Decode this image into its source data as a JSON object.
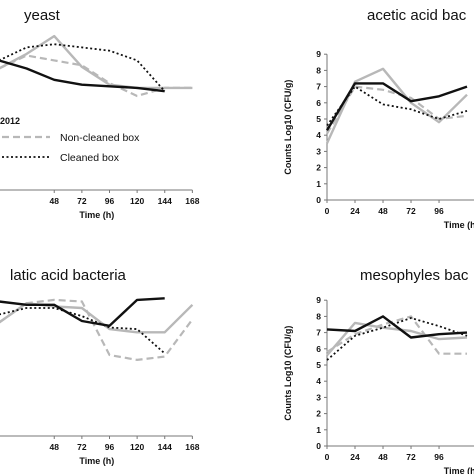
{
  "chart_data": [
    {
      "type": "line",
      "title": "yeast",
      "xlabel": "Time (h)",
      "ylabel": "",
      "xlim": [
        0,
        168
      ],
      "ylim": [
        0,
        9
      ],
      "xticks": [
        48,
        72,
        96,
        120,
        144,
        168
      ],
      "yticks": [],
      "legend": {
        "placement": "bottom-left",
        "heading": "2012",
        "entries": [
          "Non-cleaned box",
          "Cleaned box"
        ]
      },
      "series": [
        {
          "name": "",
          "style": "solid-gray",
          "x": [
            0,
            24,
            48,
            72,
            96,
            120,
            144,
            168
          ],
          "y": [
            7.5,
            8.4,
            9.5,
            7.6,
            6.5,
            6.3,
            6.3,
            6.3
          ]
        },
        {
          "name": "Non-cleaned box",
          "style": "dashed-gray",
          "x": [
            0,
            24,
            48,
            72,
            96,
            120,
            144,
            168
          ],
          "y": [
            7.5,
            8.3,
            8.0,
            7.7,
            6.6,
            5.8,
            6.3,
            6.3
          ]
        },
        {
          "name": "Cleaned box",
          "style": "dotted-black",
          "x": [
            0,
            24,
            48,
            72,
            96,
            120,
            144
          ],
          "y": [
            8.0,
            8.8,
            9.0,
            8.8,
            8.6,
            8.0,
            6.1
          ]
        },
        {
          "name": "",
          "style": "solid-black",
          "x": [
            0,
            24,
            48,
            72,
            96,
            120,
            144
          ],
          "y": [
            8.0,
            7.5,
            6.8,
            6.5,
            6.4,
            6.3,
            6.1
          ]
        }
      ]
    },
    {
      "type": "line",
      "title": "acetic acid bac",
      "xlabel": "Time (h)",
      "ylabel": "Counts Log10 (CFU/g)",
      "xlim": [
        0,
        168
      ],
      "ylim": [
        0,
        9
      ],
      "xticks": [
        0,
        24,
        48,
        72,
        96
      ],
      "yticks": [
        0,
        1,
        2,
        3,
        4,
        5,
        6,
        7,
        8,
        9
      ],
      "series": [
        {
          "name": "",
          "style": "solid-gray",
          "x": [
            0,
            24,
            48,
            72,
            96,
            120
          ],
          "y": [
            3.5,
            7.3,
            8.1,
            6.0,
            4.8,
            6.5
          ]
        },
        {
          "name": "",
          "style": "dashed-gray",
          "x": [
            0,
            24,
            48,
            72,
            96,
            120
          ],
          "y": [
            4.1,
            7.0,
            6.8,
            6.3,
            5.0,
            5.2
          ]
        },
        {
          "name": "",
          "style": "dotted-black",
          "x": [
            0,
            24,
            48,
            72,
            96,
            120
          ],
          "y": [
            4.6,
            7.0,
            5.9,
            5.6,
            5.0,
            5.5
          ]
        },
        {
          "name": "",
          "style": "solid-black",
          "x": [
            0,
            24,
            48,
            72,
            96,
            120
          ],
          "y": [
            4.3,
            7.2,
            7.2,
            6.1,
            6.4,
            7.0
          ]
        }
      ]
    },
    {
      "type": "line",
      "title": "latic acid bacteria",
      "xlabel": "Time (h)",
      "ylabel": "",
      "xlim": [
        0,
        168
      ],
      "ylim": [
        0,
        9
      ],
      "xticks": [
        48,
        72,
        96,
        120,
        144,
        168
      ],
      "yticks": [],
      "series": [
        {
          "name": "",
          "style": "solid-gray",
          "x": [
            0,
            24,
            48,
            72,
            96,
            120,
            144,
            168
          ],
          "y": [
            7.0,
            8.2,
            8.0,
            7.9,
            6.6,
            6.4,
            6.4,
            8.1
          ]
        },
        {
          "name": "",
          "style": "dashed-gray",
          "x": [
            0,
            24,
            48,
            72,
            96,
            120,
            144,
            168
          ],
          "y": [
            7.0,
            8.2,
            8.4,
            8.3,
            5.0,
            4.7,
            4.9,
            7.2
          ]
        },
        {
          "name": "",
          "style": "dotted-black",
          "x": [
            0,
            24,
            48,
            72,
            96,
            120,
            144
          ],
          "y": [
            7.5,
            7.9,
            7.9,
            7.4,
            6.7,
            6.6,
            5.1
          ]
        },
        {
          "name": "",
          "style": "solid-black",
          "x": [
            0,
            24,
            48,
            72,
            96,
            120,
            144
          ],
          "y": [
            8.3,
            8.1,
            8.1,
            7.1,
            6.8,
            8.4,
            8.5
          ]
        }
      ]
    },
    {
      "type": "line",
      "title": "mesophyles bac",
      "xlabel": "Time (h)",
      "ylabel": "Counts Log10 (CFU/g)",
      "xlim": [
        0,
        168
      ],
      "ylim": [
        0,
        9
      ],
      "xticks": [
        0,
        24,
        48,
        72,
        96
      ],
      "yticks": [
        0,
        1,
        2,
        3,
        4,
        5,
        6,
        7,
        8,
        9
      ],
      "series": [
        {
          "name": "",
          "style": "solid-gray",
          "x": [
            0,
            24,
            48,
            72,
            96,
            120
          ],
          "y": [
            5.6,
            7.6,
            7.3,
            7.1,
            6.6,
            6.7
          ]
        },
        {
          "name": "",
          "style": "dashed-gray",
          "x": [
            0,
            24,
            48,
            72,
            96,
            120
          ],
          "y": [
            5.8,
            6.9,
            7.5,
            8.0,
            5.7,
            5.7
          ]
        },
        {
          "name": "",
          "style": "dotted-black",
          "x": [
            0,
            24,
            48,
            72,
            96,
            120
          ],
          "y": [
            5.3,
            6.8,
            7.3,
            7.9,
            7.4,
            6.8
          ]
        },
        {
          "name": "",
          "style": "solid-black",
          "x": [
            0,
            24,
            48,
            72,
            96,
            120
          ],
          "y": [
            7.2,
            7.1,
            8.0,
            6.7,
            6.9,
            7.0
          ]
        }
      ]
    }
  ]
}
